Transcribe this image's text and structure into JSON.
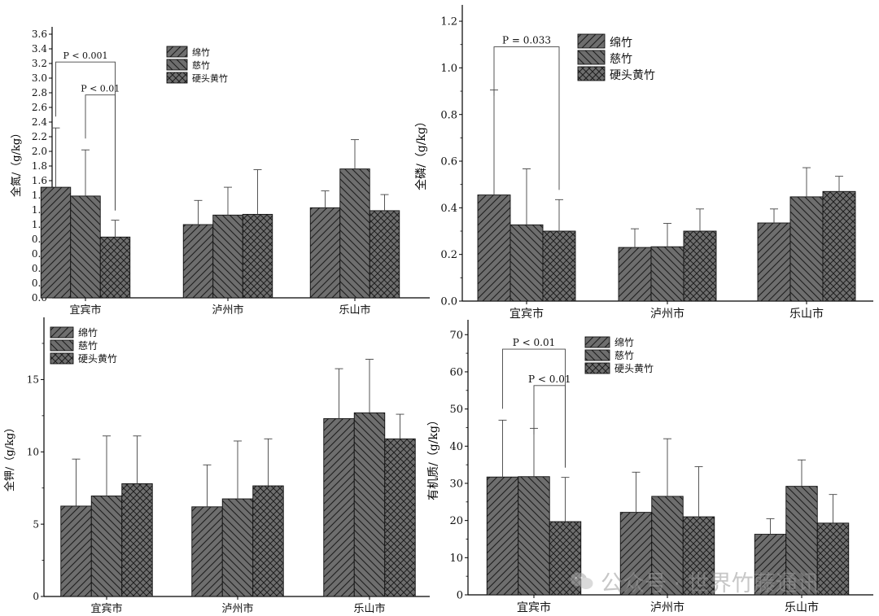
{
  "legend": [
    "绵竹",
    "慈竹",
    "硬头黄竹"
  ],
  "categories": [
    "宜宾市",
    "泸州市",
    "乐山市"
  ],
  "watermark": {
    "icon": "wechat-icon",
    "text": "公众号 · 世界竹藤通讯"
  },
  "chart_data": [
    {
      "type": "bar",
      "ylabel": "全氮/（g/kg）",
      "ylim": [
        0,
        3.7
      ],
      "yticks": [
        0.0,
        0.2,
        0.4,
        0.6,
        0.8,
        1.0,
        1.2,
        1.4,
        1.6,
        1.8,
        2.0,
        2.2,
        2.4,
        2.6,
        2.8,
        3.0,
        3.2,
        3.4,
        3.6
      ],
      "tick_decimals": 1,
      "categories": [
        "宜宾市",
        "泸州市",
        "乐山市"
      ],
      "series": [
        {
          "name": "绵竹",
          "values": [
            1.51,
            1.0,
            1.23
          ],
          "errors": [
            0.81,
            0.33,
            0.23
          ]
        },
        {
          "name": "慈竹",
          "values": [
            1.39,
            1.13,
            1.76
          ],
          "errors": [
            0.63,
            0.38,
            0.4
          ]
        },
        {
          "name": "硬头黄竹",
          "values": [
            0.83,
            1.14,
            1.19
          ],
          "errors": [
            0.23,
            0.61,
            0.22
          ]
        }
      ],
      "annotations": [
        {
          "text": "P < 0.001",
          "from_series": 0,
          "to_series": 2,
          "category": 0,
          "level": 3.22
        },
        {
          "text": "P < 0.01",
          "from_series": 1,
          "to_series": 2,
          "category": 0,
          "level": 2.77
        }
      ]
    },
    {
      "type": "bar",
      "ylabel": "全磷/（g/kg）",
      "ylim": [
        0,
        1.27
      ],
      "yticks": [
        0.0,
        0.2,
        0.4,
        0.6,
        0.8,
        1.0,
        1.2
      ],
      "tick_decimals": 1,
      "categories": [
        "宜宾市",
        "泸州市",
        "乐山市"
      ],
      "series": [
        {
          "name": "绵竹",
          "values": [
            0.455,
            0.23,
            0.335
          ],
          "errors": [
            0.45,
            0.08,
            0.06
          ]
        },
        {
          "name": "慈竹",
          "values": [
            0.327,
            0.233,
            0.447
          ],
          "errors": [
            0.24,
            0.1,
            0.125
          ]
        },
        {
          "name": "硬头黄竹",
          "values": [
            0.3,
            0.3,
            0.47
          ],
          "errors": [
            0.135,
            0.095,
            0.065
          ]
        }
      ],
      "annotations": [
        {
          "text": "P = 0.033",
          "from_series": 0,
          "to_series": 2,
          "category": 0,
          "level": 1.09
        }
      ]
    },
    {
      "type": "bar",
      "ylabel": "全钾/（g/kg）",
      "ylim": [
        0,
        19.3
      ],
      "yticks": [
        0,
        5,
        10,
        15
      ],
      "tick_decimals": 0,
      "categories": [
        "宜宾市",
        "泸州市",
        "乐山市"
      ],
      "series": [
        {
          "name": "绵竹",
          "values": [
            6.25,
            6.2,
            12.3
          ],
          "errors": [
            3.25,
            2.9,
            3.45
          ]
        },
        {
          "name": "慈竹",
          "values": [
            6.95,
            6.75,
            12.7
          ],
          "errors": [
            4.15,
            4.0,
            3.7
          ]
        },
        {
          "name": "硬头黄竹",
          "values": [
            7.8,
            7.65,
            10.9
          ],
          "errors": [
            3.3,
            3.25,
            1.7
          ]
        }
      ],
      "annotations": []
    },
    {
      "type": "bar",
      "ylabel": "有机质/（g/kg）",
      "ylim": [
        0,
        74
      ],
      "yticks": [
        0,
        10,
        20,
        30,
        40,
        50,
        60,
        70
      ],
      "tick_decimals": 0,
      "categories": [
        "宜宾市",
        "泸州市",
        "乐山市"
      ],
      "series": [
        {
          "name": "绵竹",
          "values": [
            31.7,
            22.2,
            16.3
          ],
          "errors": [
            15.3,
            10.8,
            4.2
          ]
        },
        {
          "name": "慈竹",
          "values": [
            31.8,
            26.5,
            29.2
          ],
          "errors": [
            13.0,
            15.5,
            7.1
          ]
        },
        {
          "name": "硬头黄竹",
          "values": [
            19.7,
            21.0,
            19.3
          ],
          "errors": [
            11.9,
            13.5,
            7.7
          ]
        }
      ],
      "annotations": [
        {
          "text": "P < 0.01",
          "from_series": 0,
          "to_series": 2,
          "category": 0,
          "level": 66.1
        },
        {
          "text": "P < 0.01",
          "from_series": 1,
          "to_series": 2,
          "category": 0,
          "level": 56.3
        }
      ]
    }
  ]
}
